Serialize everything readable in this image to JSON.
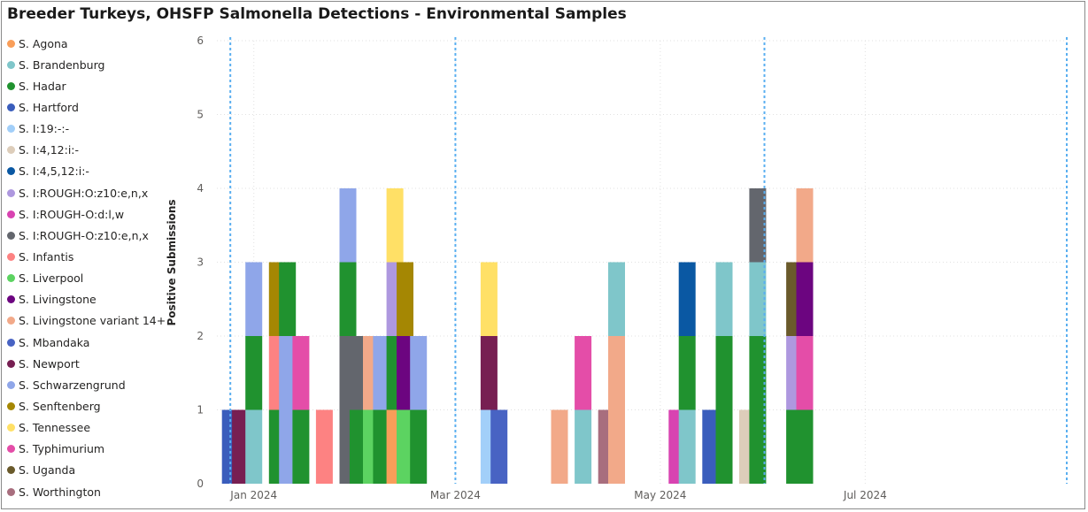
{
  "chart_data": {
    "type": "bar",
    "stacked": true,
    "title": "Breeder Turkeys, OHSFP Salmonella Detections - Environmental Samples",
    "xlabel": "",
    "ylabel": "Positive Submissions",
    "ylim": [
      0,
      6
    ],
    "yticks": [
      0,
      1,
      2,
      3,
      4,
      5,
      6
    ],
    "xrange": [
      "2023-12-21",
      "2024-08-30"
    ],
    "xticks": [
      {
        "label": "Jan 2024",
        "date": "2024-01-01"
      },
      {
        "label": "Mar 2024",
        "date": "2024-03-01"
      },
      {
        "label": "May 2024",
        "date": "2024-05-01"
      },
      {
        "label": "Jul 2024",
        "date": "2024-07-01"
      }
    ],
    "reference_lines": [
      "2023-12-25",
      "2024-03-01",
      "2024-06-01",
      "2024-08-30"
    ],
    "grid": true,
    "legend_position": "left",
    "series": [
      {
        "name": "S. Agona",
        "color": "#F99E59"
      },
      {
        "name": "S. Brandenburg",
        "color": "#7FC6CA"
      },
      {
        "name": "S. Hadar",
        "color": "#20922F"
      },
      {
        "name": "S. Hartford",
        "color": "#3A5DBC"
      },
      {
        "name": "S. I:19:-:-",
        "color": "#A2CFF9"
      },
      {
        "name": "S. I:4,12:i:-",
        "color": "#DDCDBA"
      },
      {
        "name": "S. I:4,5,12:i:-",
        "color": "#0A58A3"
      },
      {
        "name": "S. I:ROUGH:O:z10:e,n,x",
        "color": "#AE98DF"
      },
      {
        "name": "S. I:ROUGH-O:d:l,w",
        "color": "#D843B1"
      },
      {
        "name": "S. I:ROUGH-O:z10:e,n,x",
        "color": "#63666D"
      },
      {
        "name": "S. Infantis",
        "color": "#FD8282"
      },
      {
        "name": "S. Liverpool",
        "color": "#5CD361"
      },
      {
        "name": "S. Livingstone",
        "color": "#6C0580"
      },
      {
        "name": "S. Livingstone variant 14+",
        "color": "#F2A989"
      },
      {
        "name": "S. Mbandaka",
        "color": "#4863C3"
      },
      {
        "name": "S. Newport",
        "color": "#771F52"
      },
      {
        "name": "S. Schwarzengrund",
        "color": "#8FA6E9"
      },
      {
        "name": "S. Senftenberg",
        "color": "#A58703"
      },
      {
        "name": "S. Tennessee",
        "color": "#FFE066"
      },
      {
        "name": "S. Typhimurium",
        "color": "#E44DA8"
      },
      {
        "name": "S. Uganda",
        "color": "#6A5A2B"
      },
      {
        "name": "S. Worthington",
        "color": "#A86E7E"
      }
    ],
    "bars": [
      {
        "date": "2023-12-25",
        "stack": [
          {
            "series": "S. Hartford",
            "value": 1
          }
        ]
      },
      {
        "date": "2023-12-28",
        "stack": [
          {
            "series": "S. Newport",
            "value": 1
          }
        ]
      },
      {
        "date": "2024-01-01",
        "stack": [
          {
            "series": "S. Brandenburg",
            "value": 1
          },
          {
            "series": "S. Hadar",
            "value": 1
          },
          {
            "series": "S. Schwarzengrund",
            "value": 1
          }
        ]
      },
      {
        "date": "2024-01-08",
        "stack": [
          {
            "series": "S. Hadar",
            "value": 1
          },
          {
            "series": "S. Infantis",
            "value": 1
          },
          {
            "series": "S. Senftenberg",
            "value": 1
          }
        ]
      },
      {
        "date": "2024-01-11",
        "stack": [
          {
            "series": "S. Schwarzengrund",
            "value": 2
          },
          {
            "series": "S. Hadar",
            "value": 1
          }
        ]
      },
      {
        "date": "2024-01-15",
        "stack": [
          {
            "series": "S. Hadar",
            "value": 1
          },
          {
            "series": "S. Typhimurium",
            "value": 1
          }
        ]
      },
      {
        "date": "2024-01-22",
        "stack": [
          {
            "series": "S. Infantis",
            "value": 1
          }
        ]
      },
      {
        "date": "2024-01-29",
        "stack": [
          {
            "series": "S. I:ROUGH-O:z10:e,n,x",
            "value": 2
          },
          {
            "series": "S. Hadar",
            "value": 1
          },
          {
            "series": "S. Schwarzengrund",
            "value": 1
          }
        ]
      },
      {
        "date": "2024-02-01",
        "stack": [
          {
            "series": "S. Hadar",
            "value": 1
          },
          {
            "series": "S. I:ROUGH-O:z10:e,n,x",
            "value": 1
          }
        ]
      },
      {
        "date": "2024-02-05",
        "stack": [
          {
            "series": "S. Liverpool",
            "value": 1
          },
          {
            "series": "S. Livingstone variant 14+",
            "value": 1
          }
        ]
      },
      {
        "date": "2024-02-08",
        "stack": [
          {
            "series": "S. Hadar",
            "value": 1
          },
          {
            "series": "S. Schwarzengrund",
            "value": 1
          }
        ]
      },
      {
        "date": "2024-02-12",
        "stack": [
          {
            "series": "S. Agona",
            "value": 1
          },
          {
            "series": "S. Hadar",
            "value": 1
          },
          {
            "series": "S. I:ROUGH:O:z10:e,n,x",
            "value": 1
          },
          {
            "series": "S. Tennessee",
            "value": 1
          }
        ]
      },
      {
        "date": "2024-02-15",
        "stack": [
          {
            "series": "S. Liverpool",
            "value": 1
          },
          {
            "series": "S. Livingstone",
            "value": 1
          },
          {
            "series": "S. Senftenberg",
            "value": 1
          }
        ]
      },
      {
        "date": "2024-02-19",
        "stack": [
          {
            "series": "S. Hadar",
            "value": 1
          },
          {
            "series": "S. Schwarzengrund",
            "value": 1
          }
        ]
      },
      {
        "date": "2024-03-11",
        "stack": [
          {
            "series": "S. I:19:-:-",
            "value": 1
          },
          {
            "series": "S. Newport",
            "value": 1
          },
          {
            "series": "S. Tennessee",
            "value": 1
          }
        ]
      },
      {
        "date": "2024-03-14",
        "stack": [
          {
            "series": "S. Mbandaka",
            "value": 1
          }
        ]
      },
      {
        "date": "2024-04-01",
        "stack": [
          {
            "series": "S. Livingstone variant 14+",
            "value": 1
          }
        ]
      },
      {
        "date": "2024-04-08",
        "stack": [
          {
            "series": "S. Brandenburg",
            "value": 1
          },
          {
            "series": "S. Typhimurium",
            "value": 1
          }
        ]
      },
      {
        "date": "2024-04-15",
        "stack": [
          {
            "series": "S. Worthington",
            "value": 1
          }
        ]
      },
      {
        "date": "2024-04-18",
        "stack": [
          {
            "series": "S. Livingstone variant 14+",
            "value": 2
          },
          {
            "series": "S. Brandenburg",
            "value": 1
          }
        ]
      },
      {
        "date": "2024-05-06",
        "stack": [
          {
            "series": "S. I:ROUGH-O:d:l,w",
            "value": 1
          }
        ]
      },
      {
        "date": "2024-05-09",
        "stack": [
          {
            "series": "S. Brandenburg",
            "value": 1
          },
          {
            "series": "S. Hadar",
            "value": 1
          },
          {
            "series": "S. I:4,5,12:i:-",
            "value": 1
          }
        ]
      },
      {
        "date": "2024-05-16",
        "stack": [
          {
            "series": "S. Hartford",
            "value": 1
          }
        ]
      },
      {
        "date": "2024-05-20",
        "stack": [
          {
            "series": "S. Hadar",
            "value": 2
          },
          {
            "series": "S. Brandenburg",
            "value": 1
          }
        ]
      },
      {
        "date": "2024-05-27",
        "stack": [
          {
            "series": "S. I:4,12:i:-",
            "value": 1
          }
        ]
      },
      {
        "date": "2024-05-30",
        "stack": [
          {
            "series": "S. Hadar",
            "value": 2
          },
          {
            "series": "S. Brandenburg",
            "value": 1
          },
          {
            "series": "S. I:ROUGH-O:z10:e,n,x",
            "value": 1
          }
        ]
      },
      {
        "date": "2024-06-10",
        "stack": [
          {
            "series": "S. Hadar",
            "value": 1
          },
          {
            "series": "S. I:ROUGH:O:z10:e,n,x",
            "value": 1
          },
          {
            "series": "S. Uganda",
            "value": 1
          }
        ]
      },
      {
        "date": "2024-06-13",
        "stack": [
          {
            "series": "S. Hadar",
            "value": 1
          },
          {
            "series": "S. Typhimurium",
            "value": 1
          },
          {
            "series": "S. Livingstone",
            "value": 1
          },
          {
            "series": "S. Livingstone variant 14+",
            "value": 1
          }
        ]
      }
    ]
  }
}
